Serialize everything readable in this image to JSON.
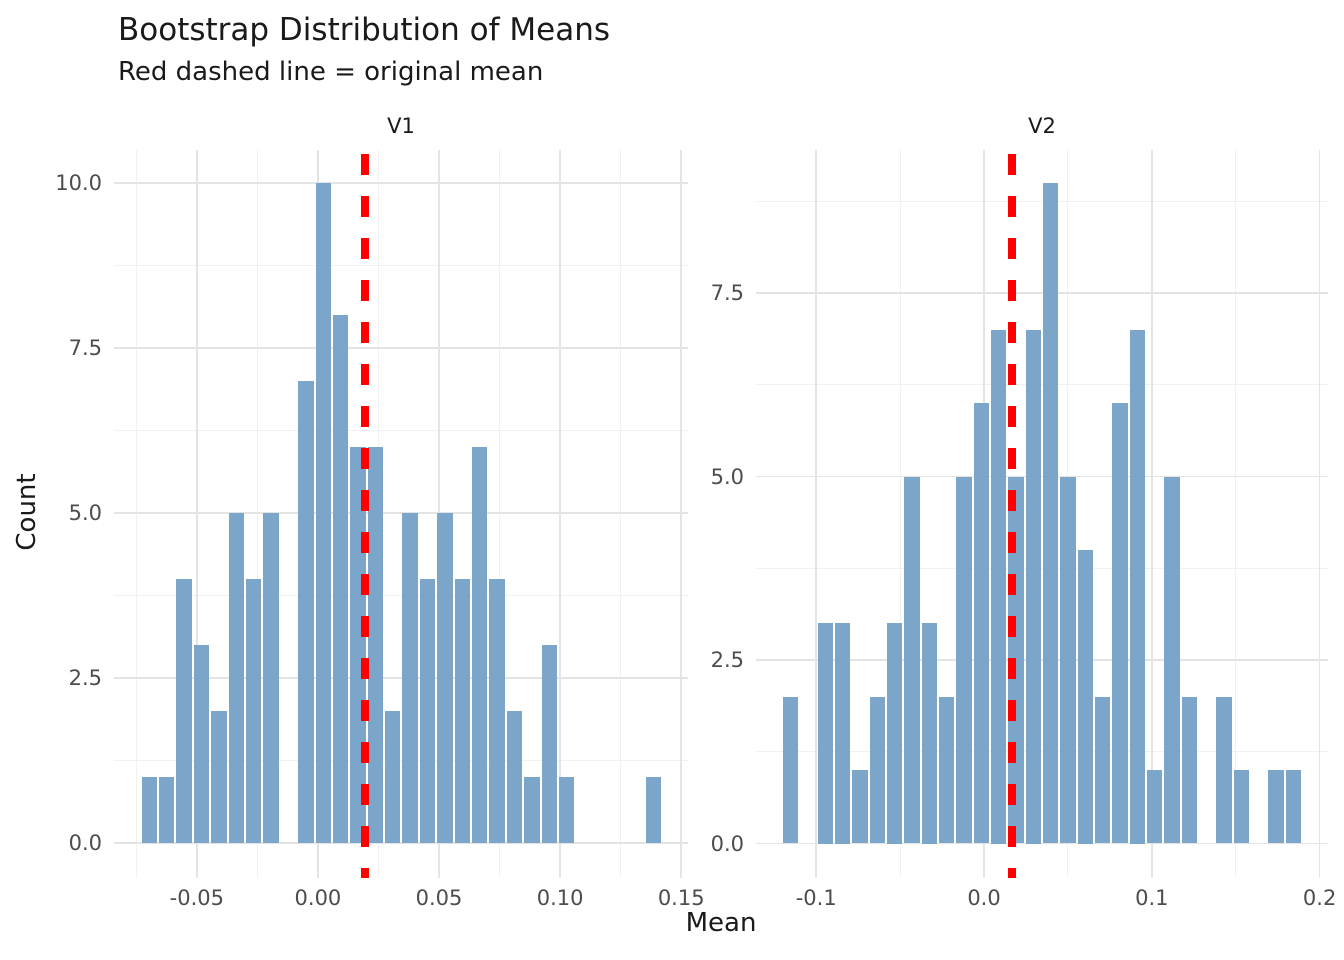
{
  "title": "Bootstrap Distribution of Means",
  "subtitle": "Red dashed line = original mean",
  "xlabel": "Mean",
  "ylabel": "Count",
  "colors": {
    "bar_fill": "#7ba6ca",
    "vline_red": "#ff0000",
    "grid_major": "#e4e4e4",
    "grid_minor": "#f1f1f1",
    "title_text": "#1a1a1a",
    "tick_text": "#4d4d4d",
    "background": "#ffffff"
  },
  "chart_data": [
    {
      "type": "bar",
      "subtype": "histogram",
      "facet": "V1",
      "bin_start": -0.0732,
      "bin_width": 0.00718,
      "counts": [
        1,
        1,
        4,
        3,
        2,
        5,
        4,
        5,
        0,
        7,
        10,
        8,
        6,
        6,
        2,
        5,
        4,
        5,
        4,
        6,
        4,
        2,
        1,
        3,
        1,
        0,
        0,
        0,
        0,
        1
      ],
      "total_samples": 100,
      "vline_original_mean": 0.0194,
      "x_tick_values": [
        -0.05,
        0.0,
        0.05,
        0.1,
        0.15
      ],
      "x_tick_labels": [
        "-0.05",
        "0.00",
        "0.05",
        "0.10",
        "0.15"
      ],
      "y_tick_values": [
        0,
        2.5,
        5,
        7.5,
        10
      ],
      "y_tick_labels": [
        "0.0",
        "2.5",
        "5.0",
        "7.5",
        "10.0"
      ],
      "xlim": [
        -0.0842,
        0.1528
      ],
      "ylim": [
        -0.53,
        10.5
      ],
      "grid": "on",
      "legend": "none"
    },
    {
      "type": "bar",
      "subtype": "histogram",
      "facet": "V2",
      "bin_start": -0.1204,
      "bin_width": 0.01033,
      "counts": [
        2,
        0,
        3,
        3,
        1,
        2,
        3,
        5,
        3,
        2,
        5,
        6,
        7,
        5,
        7,
        9,
        5,
        4,
        2,
        6,
        7,
        1,
        5,
        2,
        0,
        2,
        1,
        0,
        1,
        1
      ],
      "total_samples": 100,
      "vline_original_mean": 0.0167,
      "x_tick_values": [
        -0.1,
        0.0,
        0.1,
        0.2
      ],
      "x_tick_labels": [
        "-0.1",
        "0.0",
        "0.1",
        "0.2"
      ],
      "y_tick_values": [
        0,
        2.5,
        5,
        7.5
      ],
      "y_tick_labels": [
        "0.0",
        "2.5",
        "5.0",
        "7.5"
      ],
      "xlim": [
        -0.1359,
        0.205
      ],
      "ylim": [
        -0.47,
        9.45
      ],
      "grid": "on",
      "legend": "none"
    }
  ]
}
